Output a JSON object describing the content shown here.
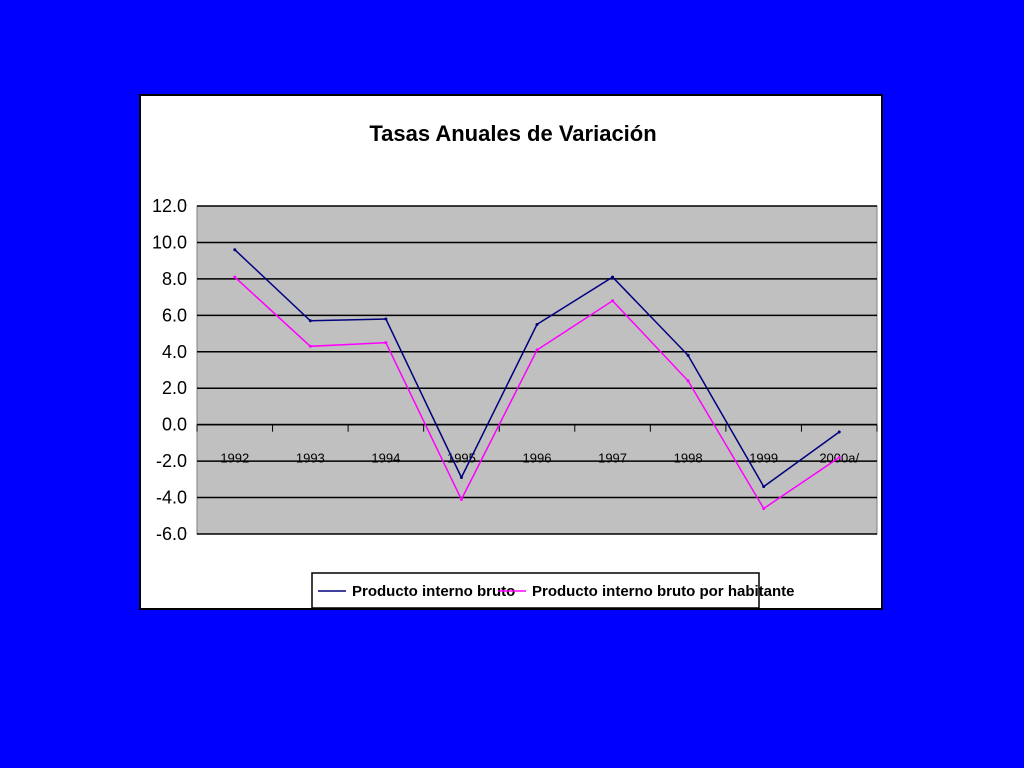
{
  "chart_data": {
    "type": "line",
    "title": "Tasas Anuales de Variación",
    "categories": [
      "1992",
      "1993",
      "1994",
      "1995",
      "1996",
      "1997",
      "1998",
      "1999",
      "2000a/"
    ],
    "series": [
      {
        "name": "Producto interno bruto",
        "color": "#00007f",
        "values": [
          9.6,
          5.7,
          5.8,
          -2.9,
          5.5,
          8.1,
          3.8,
          -3.4,
          -0.4
        ]
      },
      {
        "name": "Producto interno bruto por habitante",
        "color": "#ff00ff",
        "values": [
          8.1,
          4.3,
          4.5,
          -4.1,
          4.1,
          6.8,
          2.4,
          -4.6,
          -1.8
        ]
      }
    ],
    "yticks": [
      "12.0",
      "10.0",
      "8.0",
      "6.0",
      "4.0",
      "2.0",
      "0.0",
      "-2.0",
      "-4.0",
      "-6.0"
    ],
    "ylim": [
      -6,
      12
    ],
    "grid": true,
    "plot_background": "#c0c0c0",
    "legend_position": "bottom"
  }
}
